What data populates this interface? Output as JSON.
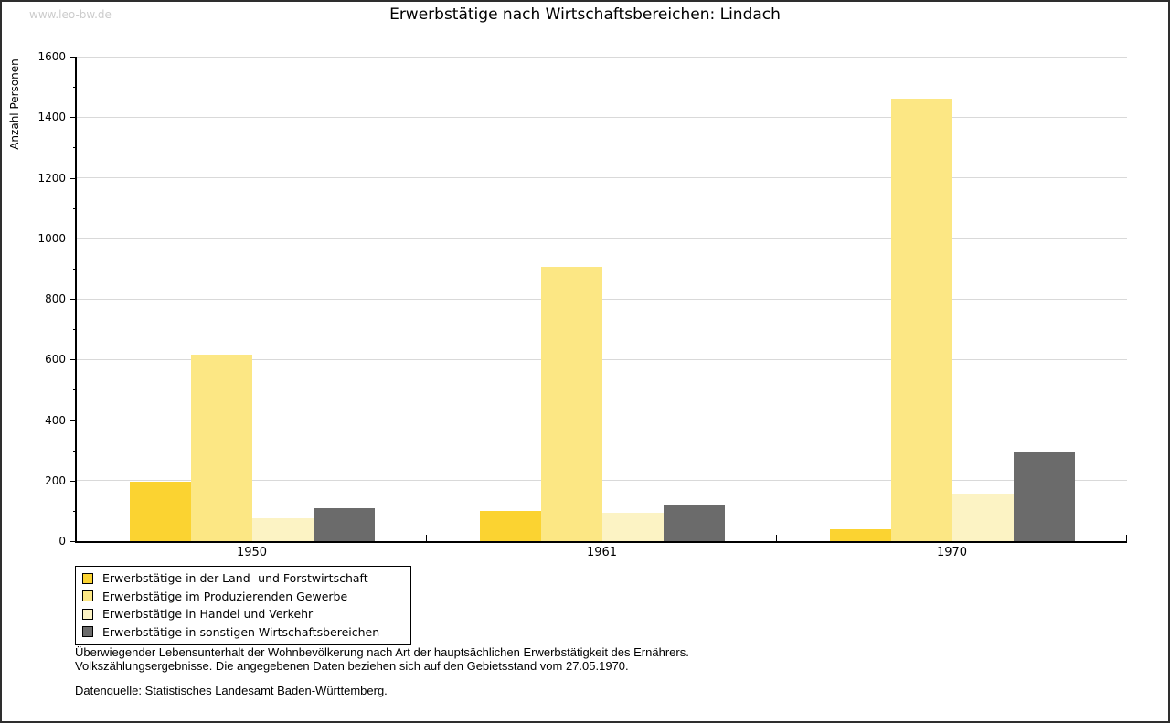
{
  "watermark": "www.leo-bw.de",
  "title": "Erwerbstätige nach Wirtschaftsbereichen: Lindach",
  "chart_data": {
    "type": "bar",
    "title": "Erwerbstätige nach Wirtschaftsbereichen: Lindach",
    "xlabel": "",
    "ylabel": "Anzahl Personen",
    "ylim": [
      0,
      1600
    ],
    "ytick_step": 200,
    "yminor_step": 100,
    "grid": true,
    "legend_position": "bottom-left",
    "categories": [
      "1950",
      "1961",
      "1970"
    ],
    "series": [
      {
        "name": "Erwerbstätige in der Land- und Forstwirtschaft",
        "color": "#fbd331",
        "values": [
          195,
          100,
          40
        ]
      },
      {
        "name": "Erwerbstätige im Produzierenden Gewerbe",
        "color": "#fce784",
        "values": [
          615,
          905,
          1460
        ]
      },
      {
        "name": "Erwerbstätige in Handel und Verkehr",
        "color": "#fcf3c4",
        "values": [
          75,
          95,
          155
        ]
      },
      {
        "name": "Erwerbstätige in sonstigen Wirtschaftsbereichen",
        "color": "#6b6b6b",
        "values": [
          110,
          120,
          295
        ]
      }
    ]
  },
  "footnotes": {
    "line1": "Überwiegender Lebensunterhalt der Wohnbevölkerung nach Art der hauptsächlichen Erwerbstätigkeit des Ernährers.",
    "line2": "Volkszählungsergebnisse. Die angegebenen Daten beziehen sich auf den Gebietsstand vom 27.05.1970.",
    "source": "Datenquelle: Statistisches Landesamt Baden-Württemberg."
  }
}
